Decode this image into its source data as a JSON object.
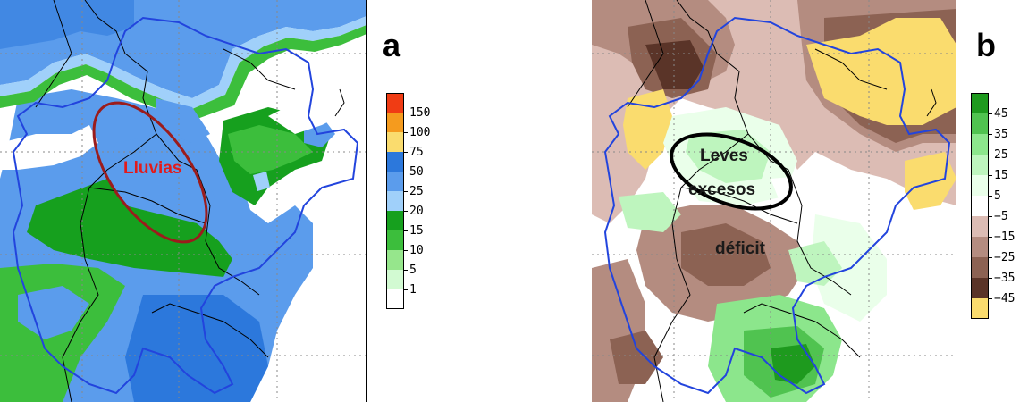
{
  "panel_a": {
    "letter": "a",
    "annotation": "Lluvias",
    "annotation_color": "#e21b1b",
    "ellipse_color": "#9b1c1c",
    "legend": [
      {
        "label": "150",
        "color": "#f03c14"
      },
      {
        "label": "100",
        "color": "#f59b1e"
      },
      {
        "label": "75",
        "color": "#fadc6e"
      },
      {
        "label": "50",
        "color": "#2c78dc"
      },
      {
        "label": "25",
        "color": "#5b9cec"
      },
      {
        "label": "20",
        "color": "#a0d0fa"
      },
      {
        "label": "15",
        "color": "#16a01e"
      },
      {
        "label": "10",
        "color": "#3cbe3c"
      },
      {
        "label": "5",
        "color": "#96e68c"
      },
      {
        "label": "1",
        "color": "#d2fad2"
      },
      {
        "label": "",
        "color": "#ffffff"
      }
    ]
  },
  "panel_b": {
    "letter": "b",
    "annotation_line1": "Leves",
    "annotation_line2": "excesos",
    "annotation_deficit": "déficit",
    "ellipse_color": "#000000",
    "legend": [
      {
        "label": "45",
        "color": "#1e9a1e"
      },
      {
        "label": "35",
        "color": "#50c350"
      },
      {
        "label": "25",
        "color": "#8ce68c"
      },
      {
        "label": "15",
        "color": "#bef5be"
      },
      {
        "label": "5",
        "color": "#eaffea"
      },
      {
        "label": "−5",
        "color": "#ffffff"
      },
      {
        "label": "−15",
        "color": "#dcbcb4"
      },
      {
        "label": "−25",
        "color": "#b48c80"
      },
      {
        "label": "−35",
        "color": "#8c6253"
      },
      {
        "label": "−45",
        "color": "#5a3428"
      },
      {
        "label": "",
        "color": "#fadc6e"
      }
    ]
  },
  "colors": {
    "border_country": "#000000",
    "basin_outline": "#2244dd",
    "grid": "#888888"
  }
}
